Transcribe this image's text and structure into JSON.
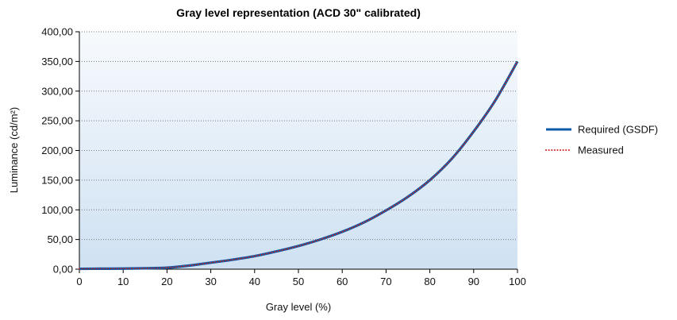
{
  "chart_data": {
    "type": "line",
    "title": "Gray level representation (ACD 30\" calibrated)",
    "xlabel": "Gray level (%)",
    "ylabel": "Luminance (cd/m²)",
    "xlim": [
      0,
      100
    ],
    "ylim": [
      0,
      400
    ],
    "x_ticks": [
      "0",
      "10",
      "20",
      "30",
      "40",
      "50",
      "60",
      "70",
      "80",
      "90",
      "100"
    ],
    "y_ticks": [
      "0,00",
      "50,00",
      "100,00",
      "150,00",
      "200,00",
      "250,00",
      "300,00",
      "350,00",
      "400,00"
    ],
    "grid": "horizontal-dotted",
    "legend_position": "right",
    "x": [
      0,
      5,
      10,
      15,
      20,
      25,
      30,
      35,
      40,
      45,
      50,
      55,
      60,
      65,
      70,
      75,
      80,
      85,
      90,
      95,
      100
    ],
    "series": [
      {
        "name": "Required (GSDF)",
        "color": "#0b5aa6",
        "style": "solid",
        "values": [
          0.6,
          0.8,
          1.0,
          1.5,
          2.5,
          6,
          11,
          16,
          22,
          30,
          39,
          50,
          63,
          79,
          99,
          122,
          150,
          186,
          232,
          285,
          350
        ]
      },
      {
        "name": "Measured",
        "color": "#cc2222",
        "style": "dotted",
        "values": [
          0.6,
          0.8,
          1.0,
          1.5,
          2.5,
          6,
          11,
          16,
          22,
          30,
          39,
          50,
          63,
          79,
          99,
          122,
          150,
          186,
          232,
          285,
          350
        ]
      }
    ],
    "colors": {
      "plot_bg_top": "#f7fafd",
      "plot_bg_bottom": "#cfe1f2",
      "grid": "#7a7a7a",
      "axis": "#000000"
    }
  }
}
